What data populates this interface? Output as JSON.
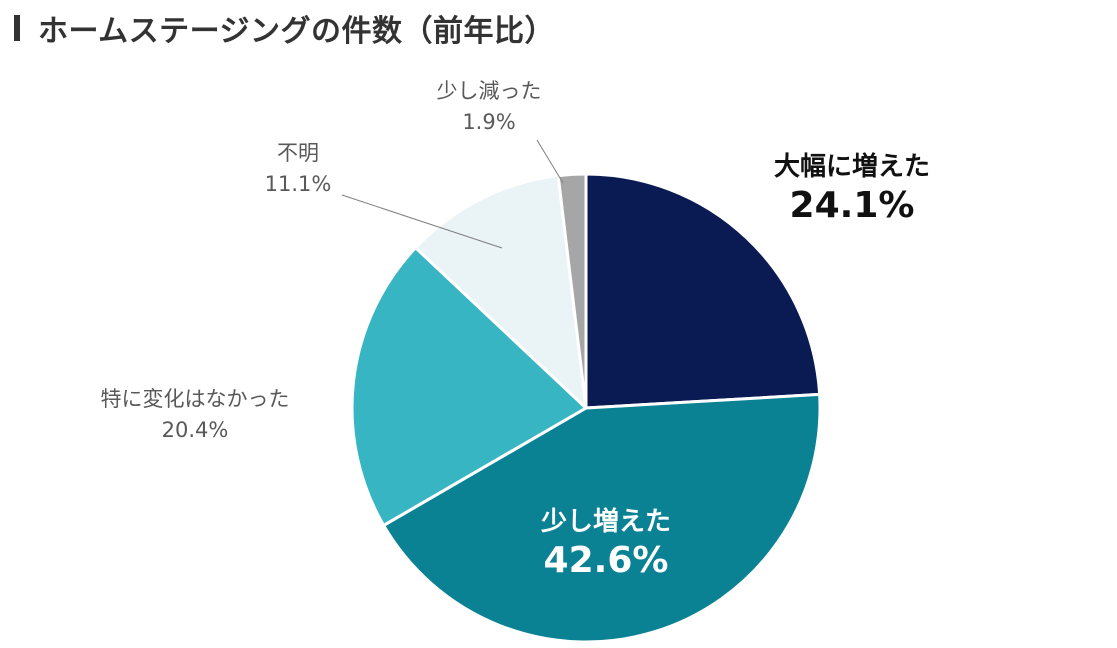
{
  "title": "ホームステージングの件数（前年比）",
  "chart_data": {
    "type": "pie",
    "title": "ホームステージングの件数（前年比）",
    "slices": [
      {
        "label": "大幅に増えた",
        "value": 24.1,
        "value_label": "24.1%",
        "color": "#0a1a52"
      },
      {
        "label": "少し増えた",
        "value": 42.6,
        "value_label": "42.6%",
        "color": "#0a8294"
      },
      {
        "label": "特に変化はなかった",
        "value": 20.4,
        "value_label": "20.4%",
        "color": "#38b5c3"
      },
      {
        "label": "不明",
        "value": 11.1,
        "value_label": "11.1%",
        "color": "#eaf3f6"
      },
      {
        "label": "少し減った",
        "value": 1.9,
        "value_label": "1.9%",
        "color": "#a6a6a6"
      }
    ],
    "start_angle": "12 o'clock",
    "direction": "clockwise",
    "legend": "none"
  }
}
